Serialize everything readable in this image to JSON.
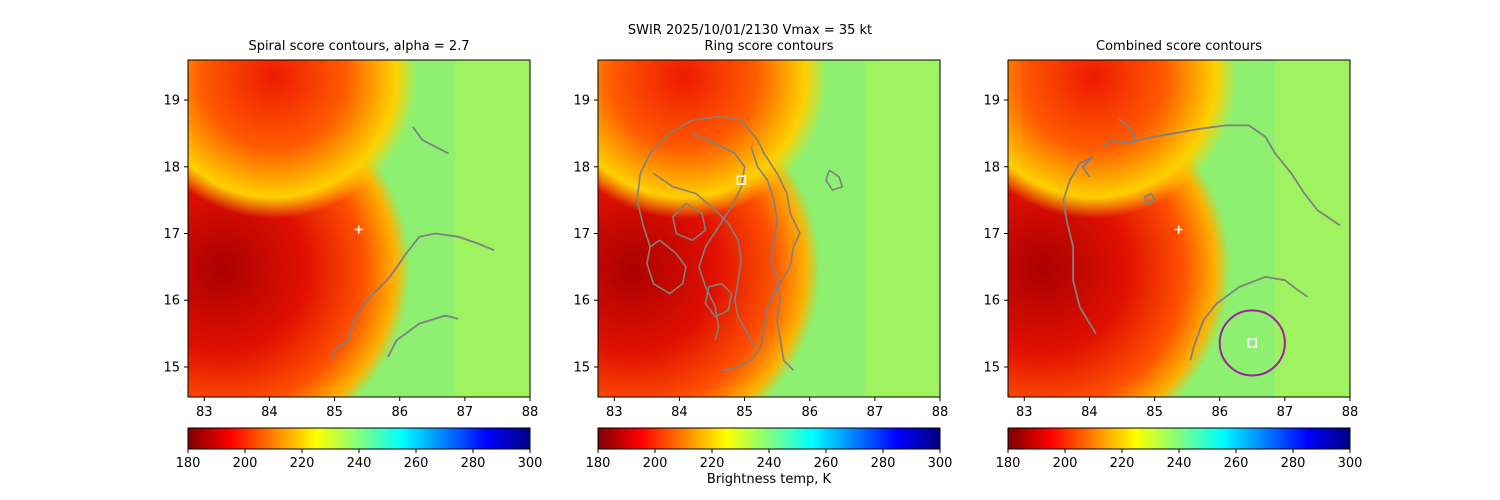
{
  "figure": {
    "suptitle": "SWIR  2025/10/01/2130    Vmax = 35 kt",
    "colorbar_label": "Brightness temp, K"
  },
  "colors": {
    "contour": "#808080",
    "marker": "#ffffff",
    "circle": "#a020a0",
    "colormap": [
      "#7f0000",
      "#ff0000",
      "#ff8000",
      "#ffff00",
      "#80ff80",
      "#00ffff",
      "#0080ff",
      "#0000ff",
      "#00007f"
    ]
  },
  "chart_data": [
    {
      "type": "heatmap",
      "title": "Spiral score contours, alpha =  2.7",
      "xlim": [
        82.75,
        88.0
      ],
      "ylim": [
        14.55,
        19.6
      ],
      "xticks": [
        83,
        84,
        85,
        86,
        87,
        88
      ],
      "yticks": [
        15,
        16,
        17,
        18,
        19
      ],
      "colorbar": {
        "min": 180,
        "max": 300,
        "ticks": [
          180,
          200,
          220,
          240,
          260,
          280,
          300
        ],
        "cmap": "jet_r"
      },
      "markers": [
        {
          "shape": "plus",
          "x": 85.37,
          "y": 17.06
        }
      ],
      "contours": [
        [
          [
            86.2,
            18.6
          ],
          [
            86.35,
            18.4
          ],
          [
            86.55,
            18.3
          ],
          [
            86.75,
            18.2
          ]
        ],
        [
          [
            84.95,
            15.1
          ],
          [
            85.0,
            15.25
          ],
          [
            85.2,
            15.4
          ],
          [
            85.3,
            15.7
          ],
          [
            85.5,
            16.0
          ],
          [
            85.85,
            16.35
          ],
          [
            86.1,
            16.7
          ],
          [
            86.3,
            16.95
          ],
          [
            86.55,
            17.0
          ],
          [
            86.9,
            16.95
          ],
          [
            87.2,
            16.85
          ],
          [
            87.45,
            16.75
          ]
        ],
        [
          [
            85.82,
            15.15
          ],
          [
            85.95,
            15.4
          ],
          [
            86.3,
            15.65
          ],
          [
            86.7,
            15.77
          ],
          [
            86.9,
            15.72
          ]
        ]
      ]
    },
    {
      "type": "heatmap",
      "title": "Ring score contours",
      "xlim": [
        82.75,
        88.0
      ],
      "ylim": [
        14.55,
        19.6
      ],
      "xticks": [
        83,
        84,
        85,
        86,
        87,
        88
      ],
      "yticks": [
        15,
        16,
        17,
        18,
        19
      ],
      "colorbar": {
        "min": 180,
        "max": 300,
        "ticks": [
          180,
          200,
          220,
          240,
          260,
          280,
          300
        ],
        "cmap": "jet_r"
      },
      "markers": [
        {
          "shape": "square",
          "x": 84.95,
          "y": 17.8
        }
      ],
      "contours": [
        [
          [
            84.65,
            14.95
          ],
          [
            84.9,
            15.0
          ],
          [
            85.1,
            15.1
          ],
          [
            85.25,
            15.3
          ],
          [
            85.3,
            15.6
          ],
          [
            85.35,
            15.9
          ],
          [
            85.5,
            16.2
          ],
          [
            85.7,
            16.5
          ],
          [
            85.75,
            16.8
          ],
          [
            85.85,
            17.0
          ],
          [
            85.7,
            17.3
          ],
          [
            85.65,
            17.6
          ],
          [
            85.5,
            17.9
          ],
          [
            85.3,
            18.2
          ],
          [
            85.2,
            18.4
          ],
          [
            84.95,
            18.7
          ],
          [
            84.6,
            18.75
          ],
          [
            84.2,
            18.7
          ],
          [
            83.85,
            18.5
          ],
          [
            83.55,
            18.2
          ],
          [
            83.4,
            17.9
          ],
          [
            83.35,
            17.5
          ],
          [
            83.45,
            17.1
          ],
          [
            83.55,
            16.8
          ]
        ],
        [
          [
            84.2,
            18.5
          ],
          [
            84.55,
            18.35
          ],
          [
            84.85,
            18.2
          ],
          [
            85.0,
            18.0
          ],
          [
            84.95,
            17.7
          ],
          [
            84.8,
            17.4
          ],
          [
            84.6,
            17.1
          ],
          [
            84.4,
            16.8
          ],
          [
            84.3,
            16.5
          ],
          [
            84.4,
            16.2
          ],
          [
            84.55,
            15.9
          ],
          [
            84.6,
            15.6
          ],
          [
            84.55,
            15.4
          ]
        ],
        [
          [
            83.6,
            17.9
          ],
          [
            83.9,
            17.7
          ],
          [
            84.25,
            17.6
          ],
          [
            84.5,
            17.4
          ],
          [
            84.75,
            17.15
          ],
          [
            84.9,
            16.9
          ],
          [
            84.95,
            16.6
          ],
          [
            84.9,
            16.3
          ],
          [
            84.85,
            16.0
          ],
          [
            84.9,
            15.75
          ],
          [
            85.05,
            15.5
          ],
          [
            85.15,
            15.3
          ]
        ],
        [
          [
            85.1,
            18.3
          ],
          [
            85.2,
            18.0
          ],
          [
            85.35,
            17.8
          ],
          [
            85.45,
            17.5
          ],
          [
            85.5,
            17.2
          ],
          [
            85.45,
            16.9
          ],
          [
            85.4,
            16.6
          ],
          [
            85.5,
            16.3
          ],
          [
            85.55,
            16.0
          ],
          [
            85.5,
            15.7
          ],
          [
            85.55,
            15.4
          ],
          [
            85.6,
            15.1
          ],
          [
            85.75,
            14.95
          ]
        ],
        [
          [
            83.7,
            16.9
          ],
          [
            83.95,
            16.7
          ],
          [
            84.1,
            16.5
          ],
          [
            84.05,
            16.25
          ],
          [
            83.85,
            16.1
          ],
          [
            83.6,
            16.25
          ],
          [
            83.5,
            16.55
          ],
          [
            83.55,
            16.8
          ],
          [
            83.7,
            16.9
          ]
        ],
        [
          [
            84.1,
            17.45
          ],
          [
            84.35,
            17.3
          ],
          [
            84.4,
            17.05
          ],
          [
            84.2,
            16.9
          ],
          [
            83.95,
            17.0
          ],
          [
            83.9,
            17.25
          ],
          [
            84.1,
            17.45
          ]
        ],
        [
          [
            84.65,
            16.25
          ],
          [
            84.8,
            16.1
          ],
          [
            84.75,
            15.85
          ],
          [
            84.55,
            15.75
          ],
          [
            84.4,
            15.95
          ],
          [
            84.45,
            16.2
          ],
          [
            84.65,
            16.25
          ]
        ],
        [
          [
            86.3,
            17.95
          ],
          [
            86.45,
            17.85
          ],
          [
            86.5,
            17.7
          ],
          [
            86.35,
            17.65
          ],
          [
            86.25,
            17.8
          ],
          [
            86.3,
            17.95
          ]
        ]
      ]
    },
    {
      "type": "heatmap",
      "title": "Combined score contours",
      "xlim": [
        82.75,
        88.0
      ],
      "ylim": [
        14.55,
        19.6
      ],
      "xticks": [
        83,
        84,
        85,
        86,
        87,
        88
      ],
      "yticks": [
        15,
        16,
        17,
        18,
        19
      ],
      "colorbar": {
        "min": 180,
        "max": 300,
        "ticks": [
          180,
          200,
          220,
          240,
          260,
          280,
          300
        ],
        "cmap": "jet_r"
      },
      "markers": [
        {
          "shape": "plus",
          "x": 85.37,
          "y": 17.06
        },
        {
          "shape": "square",
          "x": 86.5,
          "y": 15.36
        }
      ],
      "circle": {
        "x": 86.5,
        "y": 15.36,
        "r": 0.5
      },
      "contours": [
        [
          [
            84.1,
            15.5
          ],
          [
            83.85,
            15.9
          ],
          [
            83.75,
            16.3
          ],
          [
            83.75,
            16.8
          ],
          [
            83.65,
            17.2
          ],
          [
            83.6,
            17.5
          ],
          [
            83.7,
            17.8
          ],
          [
            83.85,
            18.05
          ],
          [
            84.05,
            18.15
          ]
        ],
        [
          [
            84.05,
            18.15
          ],
          [
            83.9,
            18.0
          ],
          [
            84.0,
            17.85
          ]
        ],
        [
          [
            84.2,
            18.3
          ],
          [
            84.35,
            18.4
          ],
          [
            84.55,
            18.35
          ],
          [
            84.75,
            18.4
          ],
          [
            85.0,
            18.45
          ],
          [
            85.3,
            18.5
          ],
          [
            85.7,
            18.57
          ],
          [
            86.1,
            18.62
          ],
          [
            86.45,
            18.62
          ],
          [
            86.7,
            18.45
          ],
          [
            86.85,
            18.2
          ],
          [
            87.1,
            17.9
          ],
          [
            87.3,
            17.6
          ],
          [
            87.5,
            17.35
          ],
          [
            87.65,
            17.25
          ],
          [
            87.85,
            17.12
          ]
        ],
        [
          [
            84.45,
            18.72
          ],
          [
            84.6,
            18.6
          ],
          [
            84.7,
            18.45
          ],
          [
            84.65,
            18.35
          ]
        ],
        [
          [
            85.55,
            15.1
          ],
          [
            85.6,
            15.3
          ],
          [
            85.75,
            15.7
          ],
          [
            85.95,
            15.95
          ],
          [
            86.3,
            16.2
          ],
          [
            86.7,
            16.35
          ],
          [
            87.0,
            16.3
          ],
          [
            87.2,
            16.15
          ],
          [
            87.35,
            16.05
          ]
        ],
        [
          [
            84.95,
            17.6
          ],
          [
            85.0,
            17.5
          ],
          [
            84.88,
            17.45
          ],
          [
            84.85,
            17.55
          ],
          [
            84.95,
            17.6
          ]
        ]
      ]
    }
  ]
}
